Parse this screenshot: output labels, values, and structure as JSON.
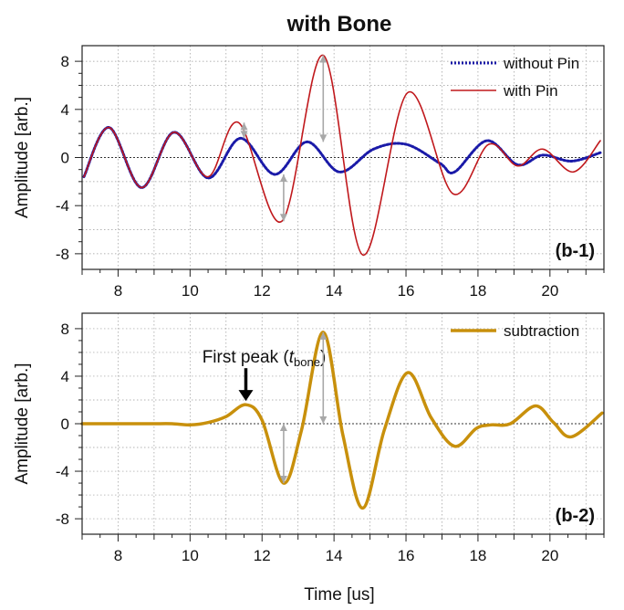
{
  "figure": {
    "title": "with Bone",
    "xlabel": "Time [us]"
  },
  "chart_data": [
    {
      "type": "line",
      "panel_label": "(b-1)",
      "title": "with Bone",
      "xlabel": "",
      "ylabel": "Amplitude [arb.]",
      "xlim": [
        7,
        21.5
      ],
      "ylim": [
        -9.3,
        9.3
      ],
      "xticks": [
        8,
        10,
        12,
        14,
        16,
        18,
        20
      ],
      "yticks": [
        8,
        4,
        0,
        -4,
        -8
      ],
      "ytick_labels": [
        "8",
        "4",
        "0",
        "-4",
        "-8"
      ],
      "grid": true,
      "legend_position": "top-right",
      "series": [
        {
          "name": "without Pin",
          "color": "#1a1aa8",
          "style": "dotted",
          "x": [
            7.05,
            7.75,
            8.65,
            9.55,
            10.5,
            11.4,
            12.35,
            13.25,
            14.15,
            15.1,
            16.0,
            16.95,
            17.35,
            18.25,
            19.1,
            19.8,
            20.6,
            21.4
          ],
          "y": [
            -1.6,
            2.5,
            -2.5,
            2.1,
            -1.7,
            1.6,
            -1.4,
            1.3,
            -1.2,
            0.7,
            1.1,
            -0.5,
            -1.2,
            1.4,
            -0.6,
            0.2,
            -0.3,
            0.4
          ]
        },
        {
          "name": "with Pin",
          "color": "#c0181c",
          "style": "solid",
          "x": [
            7.05,
            7.75,
            8.65,
            9.55,
            10.5,
            11.35,
            12.55,
            13.7,
            14.8,
            16.05,
            17.3,
            18.3,
            19.1,
            19.8,
            20.65,
            21.4
          ],
          "y": [
            -1.6,
            2.5,
            -2.5,
            2.1,
            -1.6,
            2.9,
            -5.3,
            8.5,
            -8.1,
            5.4,
            -3.0,
            1.1,
            -0.7,
            0.7,
            -1.2,
            1.4
          ]
        }
      ],
      "annotations": [
        {
          "type": "double-arrow",
          "x": 11.5,
          "y_from": 1.6,
          "y_to": 2.9
        },
        {
          "type": "double-arrow",
          "x": 12.6,
          "y_from": -1.4,
          "y_to": -5.3
        },
        {
          "type": "double-arrow",
          "x": 13.7,
          "y_from": 1.3,
          "y_to": 8.5
        }
      ]
    },
    {
      "type": "line",
      "panel_label": "(b-2)",
      "title": "",
      "xlabel": "Time [us]",
      "ylabel": "Amplitude [arb.]",
      "xlim": [
        7,
        21.5
      ],
      "ylim": [
        -9.3,
        9.3
      ],
      "xticks": [
        8,
        10,
        12,
        14,
        16,
        18,
        20
      ],
      "yticks": [
        8,
        4,
        0,
        -4,
        -8
      ],
      "ytick_labels": [
        "8",
        "4",
        "0",
        "-4",
        "-8"
      ],
      "grid": true,
      "legend_position": "top-right",
      "series": [
        {
          "name": "subtraction",
          "color": "#c8900c",
          "style": "solid",
          "x": [
            7.0,
            7.5,
            8.0,
            8.5,
            9.0,
            9.5,
            10.0,
            10.5,
            11.0,
            11.55,
            12.0,
            12.6,
            13.1,
            13.7,
            14.25,
            14.8,
            15.4,
            16.05,
            16.7,
            17.35,
            17.95,
            18.35,
            18.9,
            19.6,
            20.1,
            20.6,
            21.45
          ],
          "y": [
            0.0,
            0.0,
            0.0,
            0.0,
            0.0,
            0.0,
            -0.1,
            0.1,
            0.6,
            1.6,
            0.3,
            -5.0,
            -0.5,
            7.7,
            -1.0,
            -7.1,
            -0.5,
            4.3,
            0.5,
            -1.9,
            -0.4,
            -0.1,
            0.0,
            1.5,
            0.1,
            -1.1,
            0.9
          ]
        }
      ],
      "annotations": [
        {
          "type": "label-arrow",
          "text": "First peak (",
          "italic": "t",
          "subscript": "bone",
          "close": ")",
          "x": 11.55,
          "y": 1.6
        },
        {
          "type": "double-arrow",
          "x": 12.6,
          "y_from": 0,
          "y_to": -5.0
        },
        {
          "type": "double-arrow",
          "x": 13.7,
          "y_from": 0,
          "y_to": 7.7
        }
      ]
    }
  ]
}
